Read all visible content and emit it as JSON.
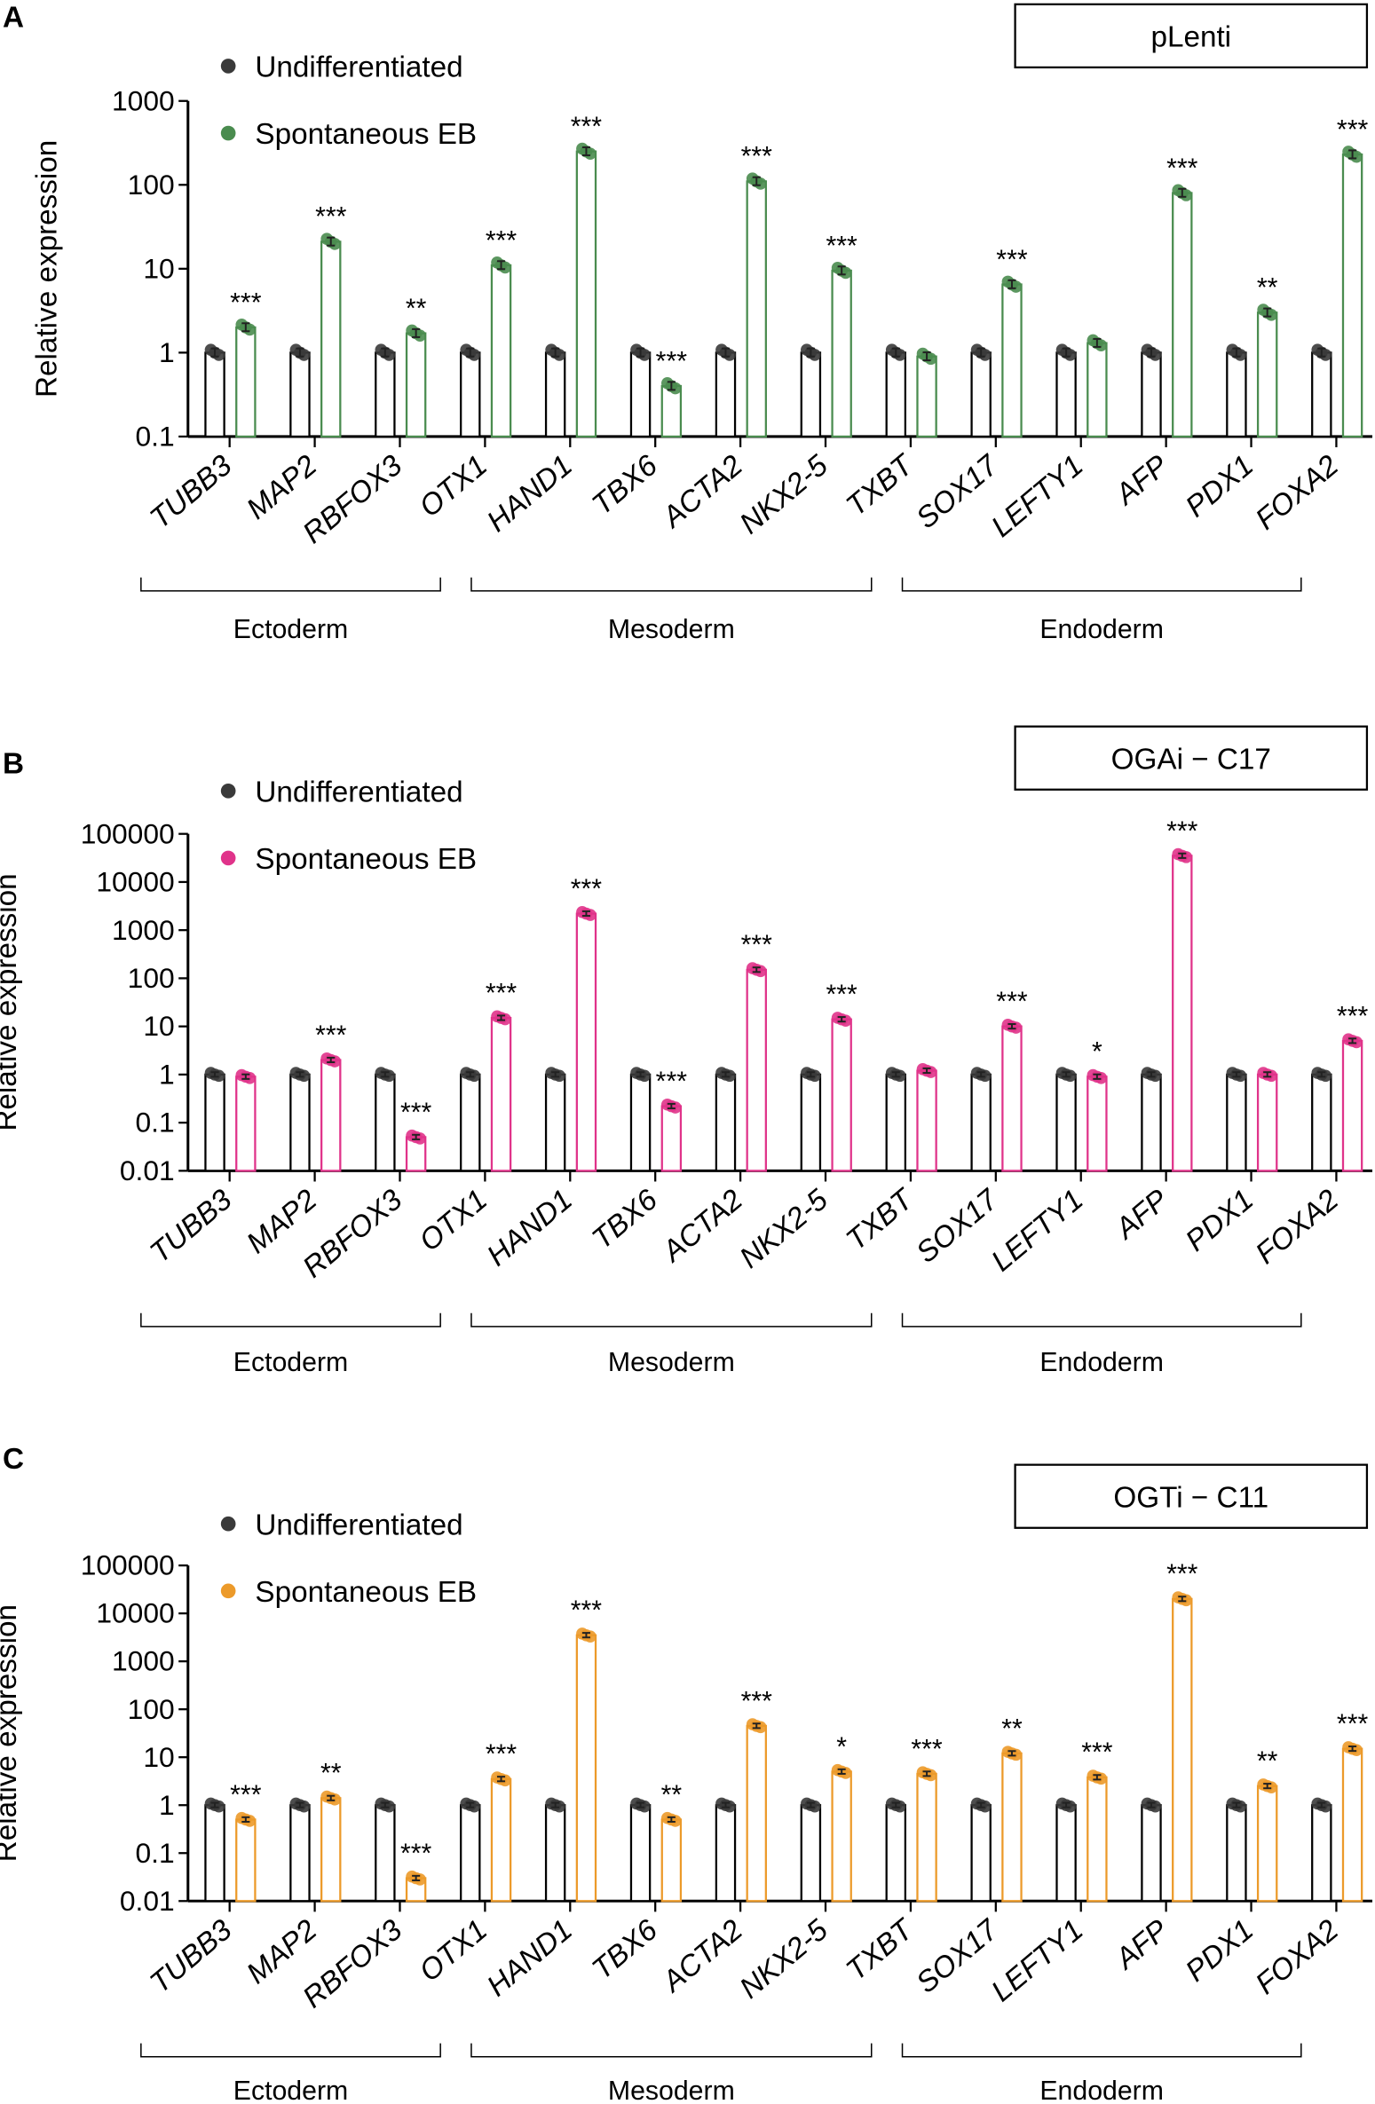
{
  "chart_data": [
    {
      "panel": "A",
      "type": "bar",
      "title": "pLenti",
      "ylabel": "Relative expression",
      "yscale": "log",
      "ylim": [
        0.1,
        1000
      ],
      "yticks": [
        "0.1",
        "1",
        "10",
        "100",
        "1000"
      ],
      "categories": [
        "TUBB3",
        "MAP2",
        "RBFOX3",
        "OTX1",
        "HAND1",
        "TBX6",
        "ACTA2",
        "NKX2-5",
        "TXBT",
        "SOX17",
        "LEFTY1",
        "AFP",
        "PDX1",
        "FOXA2"
      ],
      "groups": [
        {
          "label": "Ectoderm",
          "from": 0,
          "to": 3
        },
        {
          "label": "Mesoderm",
          "from": 4,
          "to": 8
        },
        {
          "label": "Endoderm",
          "from": 9,
          "to": 13
        }
      ],
      "series": [
        {
          "name": "Undifferentiated",
          "color": "#3a3a3a",
          "values": [
            1,
            1,
            1,
            1,
            1,
            1,
            1,
            1,
            1,
            1,
            1,
            1,
            1,
            1
          ]
        },
        {
          "name": "Spontaneous EB",
          "color": "#4a8c4f",
          "values": [
            2,
            21,
            1.7,
            11,
            250,
            0.4,
            110,
            9.5,
            0.9,
            6.5,
            1.3,
            80,
            3,
            230
          ]
        }
      ],
      "significance": [
        "***",
        "***",
        "**",
        "***",
        "***",
        "***",
        "***",
        "***",
        "",
        "***",
        "",
        "***",
        "**",
        "***"
      ]
    },
    {
      "panel": "B",
      "type": "bar",
      "title": "OGAi − C17",
      "ylabel": "Relative expression",
      "yscale": "log",
      "ylim": [
        0.01,
        100000
      ],
      "yticks": [
        "0.01",
        "0.1",
        "1",
        "10",
        "100",
        "1000",
        "10000",
        "100000"
      ],
      "categories": [
        "TUBB3",
        "MAP2",
        "RBFOX3",
        "OTX1",
        "HAND1",
        "TBX6",
        "ACTA2",
        "NKX2-5",
        "TXBT",
        "SOX17",
        "LEFTY1",
        "AFP",
        "PDX1",
        "FOXA2"
      ],
      "groups": [
        {
          "label": "Ectoderm",
          "from": 0,
          "to": 3
        },
        {
          "label": "Mesoderm",
          "from": 4,
          "to": 8
        },
        {
          "label": "Endoderm",
          "from": 9,
          "to": 13
        }
      ],
      "series": [
        {
          "name": "Undifferentiated",
          "color": "#3a3a3a",
          "values": [
            1,
            1,
            1,
            1,
            1,
            1,
            1,
            1,
            1,
            1,
            1,
            1,
            1,
            1
          ]
        },
        {
          "name": "Spontaneous EB",
          "color": "#e0338a",
          "values": [
            0.9,
            2,
            0.05,
            15,
            2200,
            0.22,
            150,
            14,
            1.2,
            10,
            0.9,
            35000,
            1,
            5
          ]
        }
      ],
      "significance": [
        "",
        "***",
        "***",
        "***",
        "***",
        "***",
        "***",
        "***",
        "",
        "***",
        "*",
        "***",
        "",
        "***"
      ]
    },
    {
      "panel": "C",
      "type": "bar",
      "title": "OGTi − C11",
      "ylabel": "Relative expression",
      "yscale": "log",
      "ylim": [
        0.01,
        100000
      ],
      "yticks": [
        "0.01",
        "0.1",
        "1",
        "10",
        "100",
        "1000",
        "10000",
        "100000"
      ],
      "categories": [
        "TUBB3",
        "MAP2",
        "RBFOX3",
        "OTX1",
        "HAND1",
        "TBX6",
        "ACTA2",
        "NKX2-5",
        "TXBT",
        "SOX17",
        "LEFTY1",
        "AFP",
        "PDX1",
        "FOXA2"
      ],
      "groups": [
        {
          "label": "Ectoderm",
          "from": 0,
          "to": 3
        },
        {
          "label": "Mesoderm",
          "from": 4,
          "to": 8
        },
        {
          "label": "Endoderm",
          "from": 9,
          "to": 13
        }
      ],
      "series": [
        {
          "name": "Undifferentiated",
          "color": "#3a3a3a",
          "values": [
            1,
            1,
            1,
            1,
            1,
            1,
            1,
            1,
            1,
            1,
            1,
            1,
            1,
            1
          ]
        },
        {
          "name": "Spontaneous EB",
          "color": "#ec9a2a",
          "values": [
            0.5,
            1.4,
            0.03,
            3.5,
            3500,
            0.5,
            45,
            5,
            4.5,
            12,
            3.8,
            20000,
            2.5,
            15
          ]
        }
      ],
      "significance": [
        "***",
        "**",
        "***",
        "***",
        "***",
        "**",
        "***",
        "*",
        "***",
        "**",
        "***",
        "***",
        "**",
        "***"
      ]
    }
  ]
}
